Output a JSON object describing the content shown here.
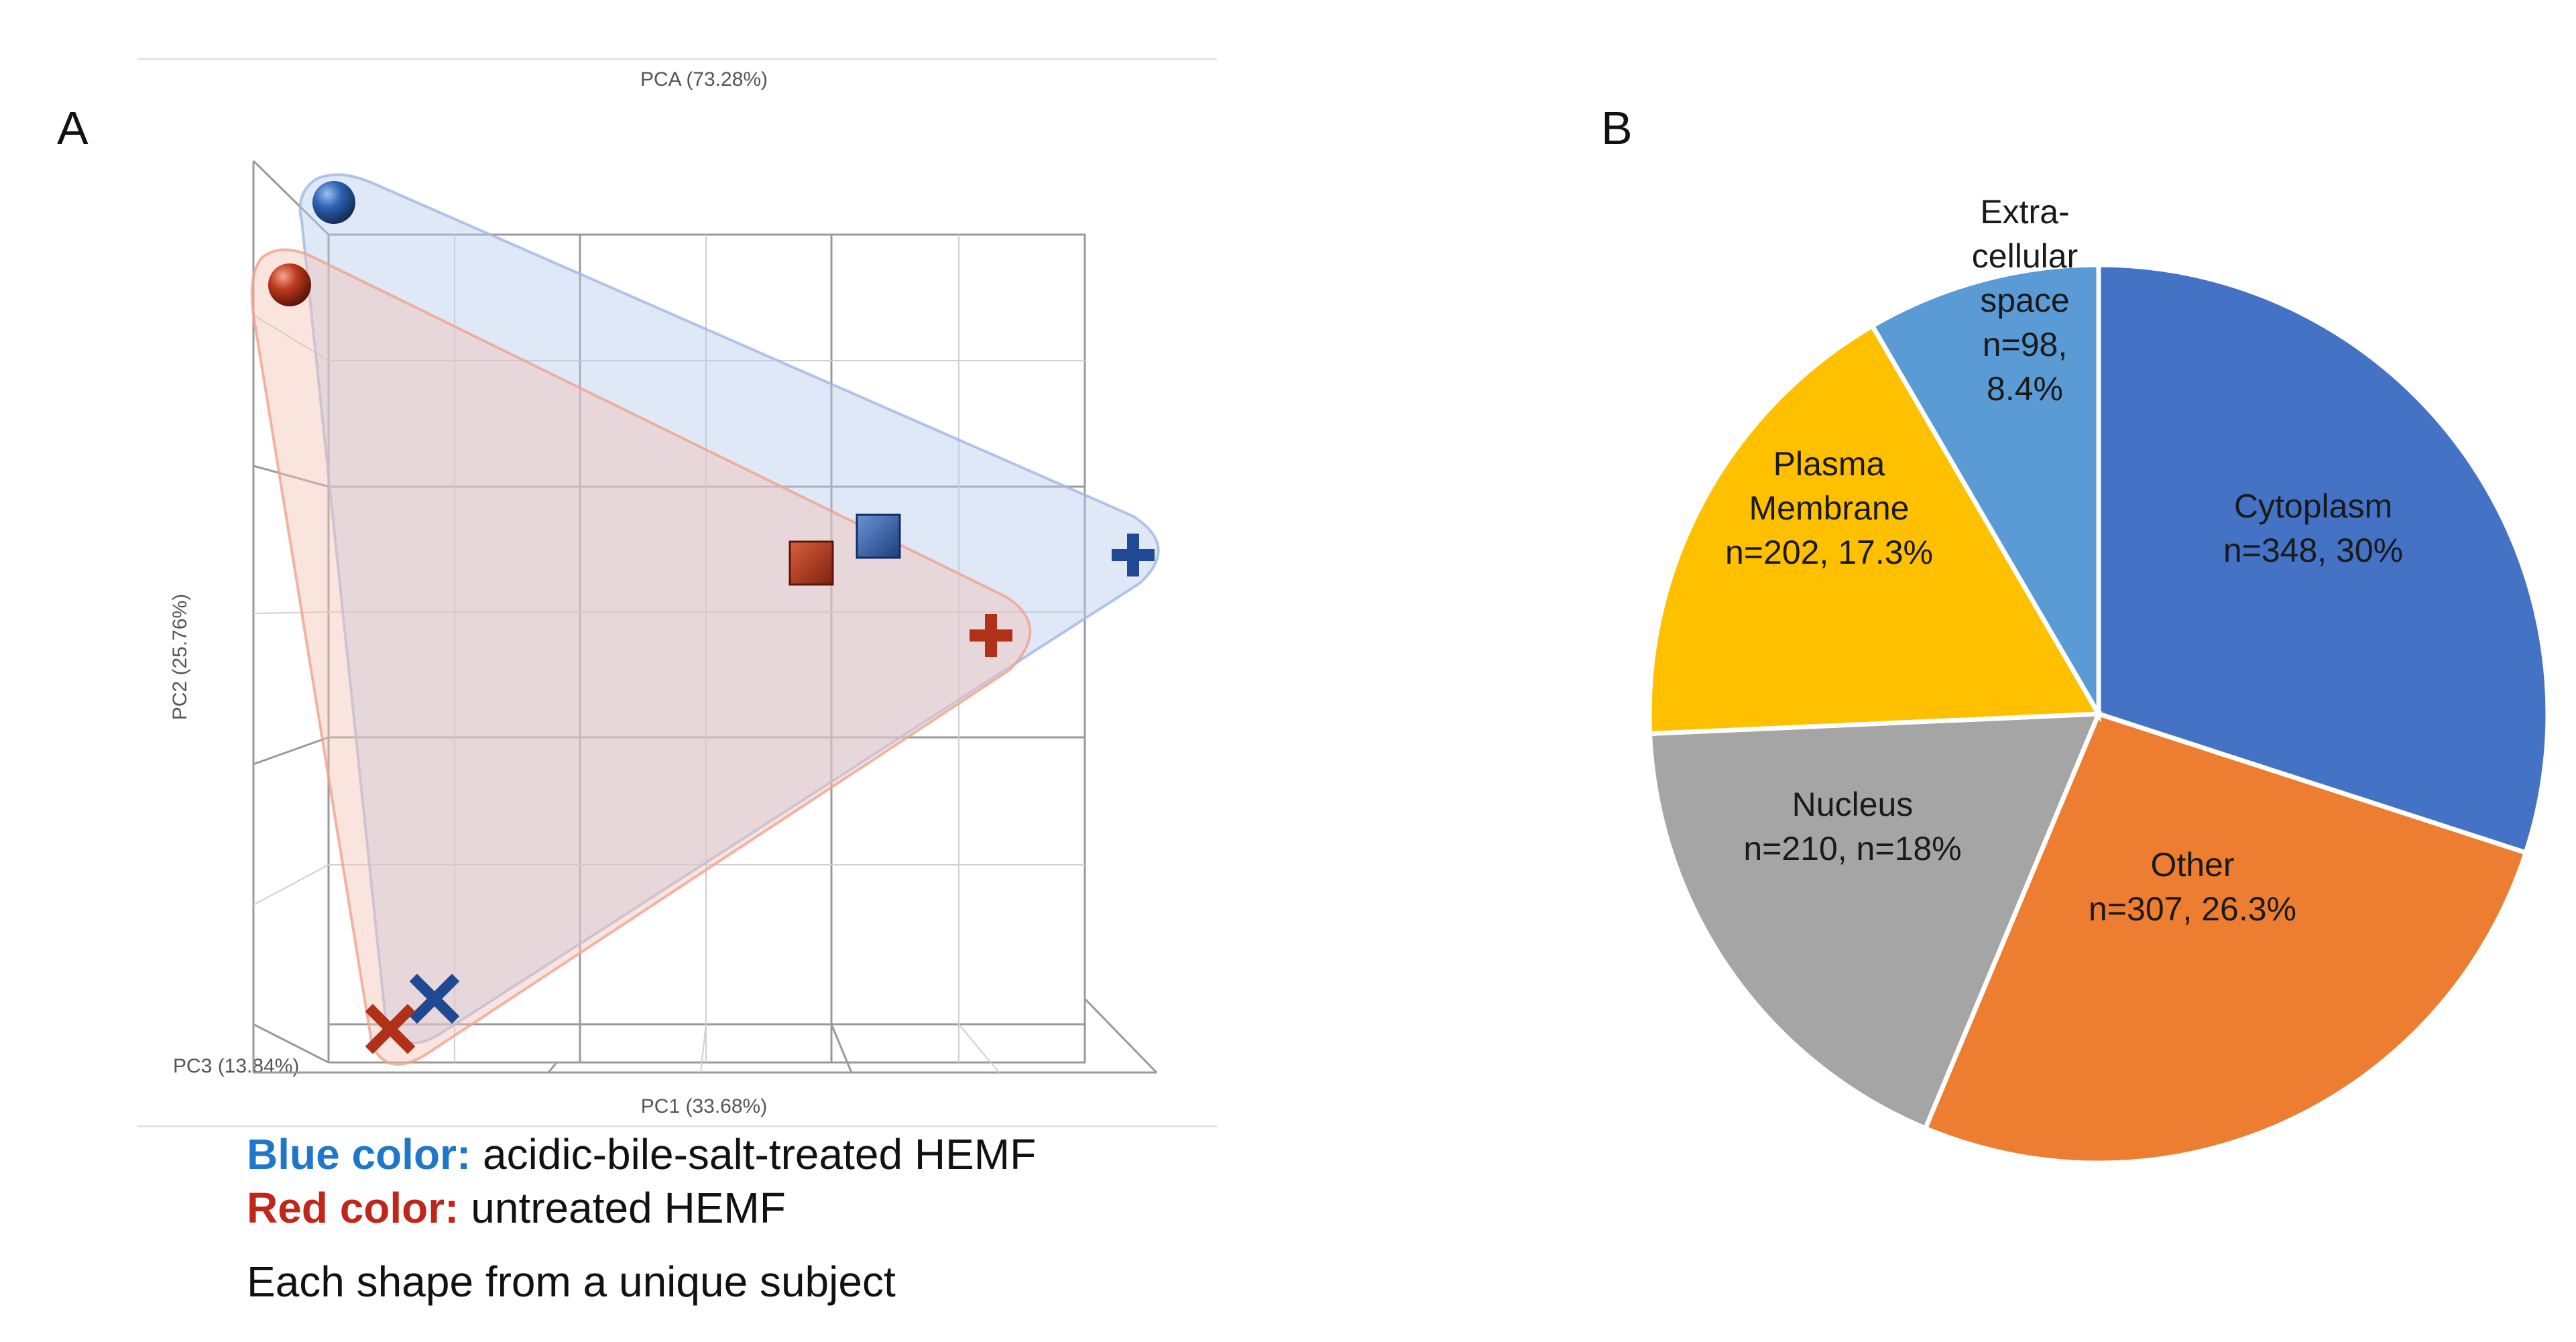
{
  "panel_a": {
    "letter": "A",
    "legend": {
      "blue_label": "Blue color:",
      "blue_text": "acidic-bile-salt-treated HEMF",
      "red_label": "Red color:",
      "red_text": "untreated HEMF",
      "note": "Each shape from a unique subject"
    }
  },
  "panel_b": {
    "letter": "B"
  },
  "colors": {
    "blue_group": "#2b5fa8",
    "red_group": "#b8321b",
    "blue_label": "#1f77c9",
    "red_label": "#c0261a",
    "hull_blue": "#9fb8e4",
    "hull_red": "#f0a28f",
    "grid": "#9a9a9a"
  },
  "chart_data": [
    {
      "type": "scatter",
      "title": "PCA (73.28%)",
      "xlabel": "PC1 (33.68%)",
      "ylabel": "PC2 (25.76%)",
      "zlabel": "PC3 (13.84%)",
      "grid": true,
      "series": [
        {
          "name": "acidic-bile-salt-treated HEMF",
          "color": "blue",
          "points": [
            {
              "subject": "sphere",
              "pc1": 0.05,
              "pc2": 1.0
            },
            {
              "subject": "square",
              "pc1": 0.78,
              "pc2": 0.55
            },
            {
              "subject": "plus",
              "pc1": 1.0,
              "pc2": 0.52
            },
            {
              "subject": "cross",
              "pc1": 0.14,
              "pc2": 0.0
            }
          ]
        },
        {
          "name": "untreated HEMF",
          "color": "red",
          "points": [
            {
              "subject": "sphere",
              "pc1": 0.0,
              "pc2": 0.88
            },
            {
              "subject": "square",
              "pc1": 0.72,
              "pc2": 0.54
            },
            {
              "subject": "plus",
              "pc1": 0.88,
              "pc2": 0.42
            },
            {
              "subject": "cross",
              "pc1": 0.12,
              "pc2": -0.02
            }
          ]
        }
      ]
    },
    {
      "type": "pie",
      "title": "",
      "slices": [
        {
          "name": "Cytoplasm",
          "n": 348,
          "percent": 30.0,
          "color": "#4472c4",
          "label_lines": [
            "Cytoplasm",
            "n=348, 30%"
          ]
        },
        {
          "name": "Other",
          "n": 307,
          "percent": 26.3,
          "color": "#ed7d31",
          "label_lines": [
            "Other",
            "n=307, 26.3%"
          ]
        },
        {
          "name": "Nucleus",
          "n": 210,
          "percent": 18.0,
          "color": "#a5a5a5",
          "label_lines": [
            "Nucleus",
            "n=210, n=18%"
          ]
        },
        {
          "name": "Plasma Membrane",
          "n": 202,
          "percent": 17.3,
          "color": "#ffc000",
          "label_lines": [
            "Plasma",
            "Membrane",
            "n=202, 17.3%"
          ]
        },
        {
          "name": "Extra-cellular space",
          "n": 98,
          "percent": 8.4,
          "color": "#5b9bd5",
          "label_lines": [
            "Extra-",
            "cellular",
            "space",
            "n=98,",
            "8.4%"
          ]
        }
      ]
    }
  ]
}
